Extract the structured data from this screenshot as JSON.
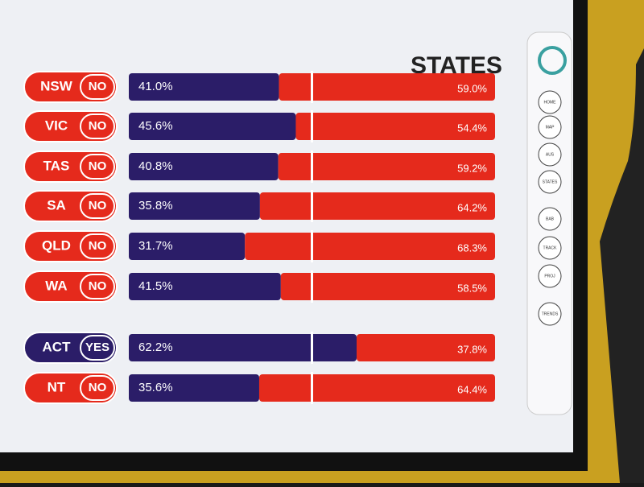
{
  "chart_data": {
    "type": "stacked-bar",
    "title": "STATES",
    "categories": [
      "NSW",
      "VIC",
      "TAS",
      "SA",
      "QLD",
      "WA",
      "ACT",
      "NT"
    ],
    "results": [
      "NO",
      "NO",
      "NO",
      "NO",
      "NO",
      "NO",
      "YES",
      "NO"
    ],
    "xlim": [
      0,
      100
    ],
    "series": [
      {
        "color": "#2b1d68",
        "values": [
          41.0,
          45.6,
          40.8,
          35.8,
          31.7,
          41.5,
          62.2,
          35.6
        ],
        "value_labels": [
          "41.0%",
          "45.6%",
          "40.8%",
          "35.8%",
          "31.7%",
          "41.5%",
          "62.2%",
          "35.6%"
        ]
      },
      {
        "color": "#e52a1c",
        "values": [
          59.0,
          54.4,
          59.2,
          64.2,
          68.3,
          58.5,
          37.8,
          64.4
        ],
        "value_labels": [
          "59.0%",
          "54.4%",
          "59.2%",
          "64.2%",
          "68.3%",
          "58.5%",
          "37.8%",
          "64.4%"
        ]
      }
    ]
  },
  "nav": [
    "HOME",
    "MAP",
    "AUS",
    "STATES",
    "BAB",
    "TRACK",
    "PROJ",
    "TRENDS"
  ]
}
